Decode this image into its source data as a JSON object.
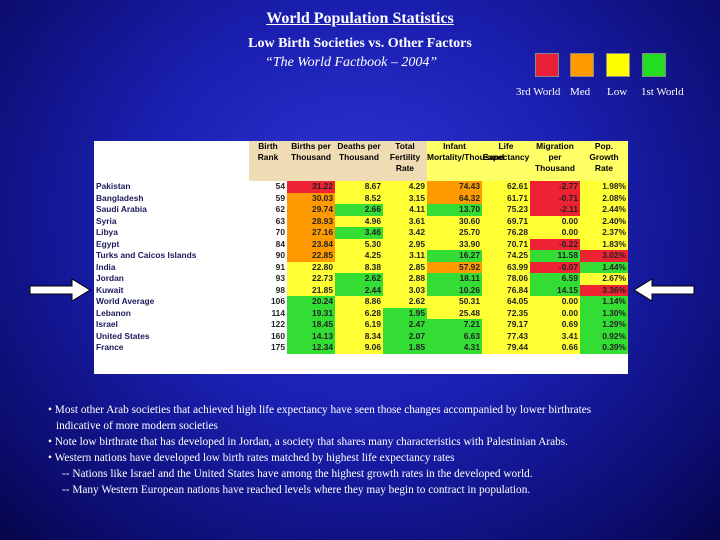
{
  "header": {
    "title": "World Population Statistics",
    "subtitle": "Low Birth Societies vs. Other Factors",
    "source": "“The World Factbook – 2004”"
  },
  "legend": {
    "items": [
      {
        "label": "3rd World",
        "color": "#e8203a"
      },
      {
        "label": "Med",
        "color": "#ff9a00"
      },
      {
        "label": "Low",
        "color": "#ffff00"
      },
      {
        "label": "1st World",
        "color": "#22dd22"
      }
    ]
  },
  "table": {
    "columns": [
      "",
      "Birth Rank",
      "Births per Thousand",
      "Deaths per Thousand",
      "Total Fertility Rate",
      "Infant Mortality/Thousand",
      "Life Expectancy",
      "Migration per Thousand",
      "Pop. Growth Rate"
    ],
    "rows": [
      {
        "country": "Pakistan",
        "rank": "54",
        "births": "31.22",
        "deaths": "8.67",
        "fertility": "4.29",
        "infant": "74.43",
        "life": "62.61",
        "migration": "-2.77",
        "growth": "1.98%"
      },
      {
        "country": "Bangladesh",
        "rank": "59",
        "births": "30.03",
        "deaths": "8.52",
        "fertility": "3.15",
        "infant": "64.32",
        "life": "61.71",
        "migration": "-0.71",
        "growth": "2.08%"
      },
      {
        "country": "Saudi Arabia",
        "rank": "62",
        "births": "29.74",
        "deaths": "2.66",
        "fertility": "4.11",
        "infant": "13.70",
        "life": "75.23",
        "migration": "-2.11",
        "growth": "2.44%"
      },
      {
        "country": "Syria",
        "rank": "63",
        "births": "28.93",
        "deaths": "4.96",
        "fertility": "3.61",
        "infant": "30.60",
        "life": "69.71",
        "migration": "0.00",
        "growth": "2.40%"
      },
      {
        "country": "Libya",
        "rank": "70",
        "births": "27.16",
        "deaths": "3.46",
        "fertility": "3.42",
        "infant": "25.70",
        "life": "76.28",
        "migration": "0.00",
        "growth": "2.37%"
      },
      {
        "country": "Egypt",
        "rank": "84",
        "births": "23.84",
        "deaths": "5.30",
        "fertility": "2.95",
        "infant": "33.90",
        "life": "70.71",
        "migration": "-0.22",
        "growth": "1.83%"
      },
      {
        "country": "Turks and Caicos Islands",
        "rank": "90",
        "births": "22.85",
        "deaths": "4.25",
        "fertility": "3.11",
        "infant": "16.27",
        "life": "74.25",
        "migration": "11.58",
        "growth": "3.02%"
      },
      {
        "country": "India",
        "rank": "91",
        "births": "22.80",
        "deaths": "8.38",
        "fertility": "2.85",
        "infant": "57.92",
        "life": "63.99",
        "migration": "-0.07",
        "growth": "1.44%"
      },
      {
        "country": "Jordan",
        "rank": "93",
        "births": "22.73",
        "deaths": "2.62",
        "fertility": "2.88",
        "infant": "18.11",
        "life": "78.06",
        "migration": "6.59",
        "growth": "2.67%"
      },
      {
        "country": "Kuwait",
        "rank": "98",
        "births": "21.85",
        "deaths": "2.44",
        "fertility": "3.03",
        "infant": "10.26",
        "life": "76.84",
        "migration": "14.15",
        "growth": "3.36%"
      },
      {
        "country": "World Average",
        "rank": "106",
        "births": "20.24",
        "deaths": "8.86",
        "fertility": "2.62",
        "infant": "50.31",
        "life": "64.05",
        "migration": "0.00",
        "growth": "1.14%"
      },
      {
        "country": "Lebanon",
        "rank": "114",
        "births": "19.31",
        "deaths": "6.28",
        "fertility": "1.95",
        "infant": "25.48",
        "life": "72.35",
        "migration": "0.00",
        "growth": "1.30%"
      },
      {
        "country": "Israel",
        "rank": "122",
        "births": "18.45",
        "deaths": "6.19",
        "fertility": "2.47",
        "infant": "7.21",
        "life": "79.17",
        "migration": "0.69",
        "growth": "1.29%"
      },
      {
        "country": "United States",
        "rank": "160",
        "births": "14.13",
        "deaths": "8.34",
        "fertility": "2.07",
        "infant": "6.63",
        "life": "77.43",
        "migration": "3.41",
        "growth": "0.92%"
      },
      {
        "country": "France",
        "rank": "175",
        "births": "12.34",
        "deaths": "9.06",
        "fertility": "1.85",
        "infant": "4.31",
        "life": "79.44",
        "migration": "0.66",
        "growth": "0.39%"
      }
    ],
    "colors": {
      "births": [
        "R",
        "O",
        "O",
        "O",
        "O",
        "O",
        "O",
        "Y",
        "Y",
        "Y",
        "G",
        "G",
        "G",
        "G",
        "G"
      ],
      "deaths": [
        "Y",
        "Y",
        "G",
        "Y",
        "G",
        "Y",
        "Y",
        "Y",
        "G",
        "G",
        "Y",
        "Y",
        "Y",
        "Y",
        "Y"
      ],
      "fertility": [
        "Y",
        "Y",
        "Y",
        "Y",
        "Y",
        "Y",
        "Y",
        "Y",
        "Y",
        "Y",
        "Y",
        "G",
        "G",
        "G",
        "G"
      ],
      "infant": [
        "O",
        "O",
        "G",
        "Y",
        "Y",
        "Y",
        "G",
        "O",
        "G",
        "G",
        "Y",
        "Y",
        "G",
        "G",
        "G"
      ],
      "life": [
        "Y",
        "Y",
        "Y",
        "Y",
        "Y",
        "Y",
        "Y",
        "Y",
        "Y",
        "Y",
        "Y",
        "Y",
        "Y",
        "Y",
        "Y"
      ],
      "migration": [
        "R",
        "R",
        "R",
        "Y",
        "Y",
        "R",
        "G",
        "R",
        "G",
        "G",
        "Y",
        "Y",
        "Y",
        "Y",
        "Y"
      ],
      "growth": [
        "Y",
        "Y",
        "Y",
        "Y",
        "Y",
        "Y",
        "R",
        "G",
        "Y",
        "R",
        "G",
        "G",
        "G",
        "G",
        "G"
      ]
    }
  },
  "notes": {
    "line1": "• Most other Arab societies that achieved high life expectancy have seen those changes accompanied by lower birthrates",
    "line2": "indicative of more modern societies",
    "line3": "• Note low birthrate that has developed in Jordan, a society that shares many characteristics with Palestinian Arabs.",
    "line4": "• Western nations have developed low birth rates matched by highest life expectancy rates",
    "line5": "-- Nations like Israel and the United States have among the highest growth rates in the developed world.",
    "line6": "-- Many Western European nations have reached levels where they may begin to contract in population."
  }
}
